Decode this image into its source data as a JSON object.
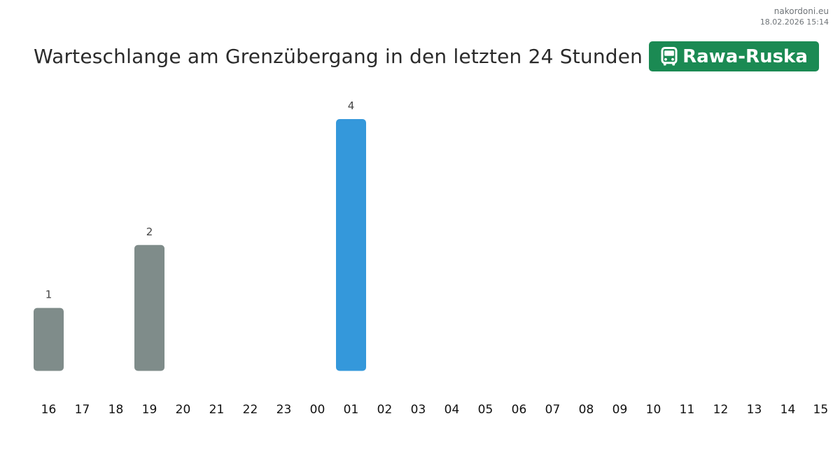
{
  "meta": {
    "site": "nakordoni.eu",
    "timestamp": "18.02.2026 15:14"
  },
  "header": {
    "title": "Warteschlange am Grenzübergang in den letzten 24 Stunden",
    "badge_label": "Rawa-Ruska",
    "badge_icon": "bus-icon",
    "badge_color": "#1b8a53"
  },
  "chart_data": {
    "type": "bar",
    "categories": [
      "16",
      "17",
      "18",
      "19",
      "20",
      "21",
      "22",
      "23",
      "00",
      "01",
      "02",
      "03",
      "04",
      "05",
      "06",
      "07",
      "08",
      "09",
      "10",
      "11",
      "12",
      "13",
      "14",
      "15"
    ],
    "values": [
      1,
      0,
      0,
      2,
      0,
      0,
      0,
      0,
      0,
      4,
      0,
      0,
      0,
      0,
      0,
      0,
      0,
      0,
      0,
      0,
      0,
      0,
      0,
      0
    ],
    "data_labels": true,
    "highlight_index": 9,
    "colors": {
      "default": "#7f8c8a",
      "highlight": "#3498db"
    },
    "ylim": [
      0,
      4
    ],
    "grid": false,
    "title": "Warteschlange am Grenzübergang in den letzten 24 Stunden",
    "xlabel": "",
    "ylabel": ""
  }
}
